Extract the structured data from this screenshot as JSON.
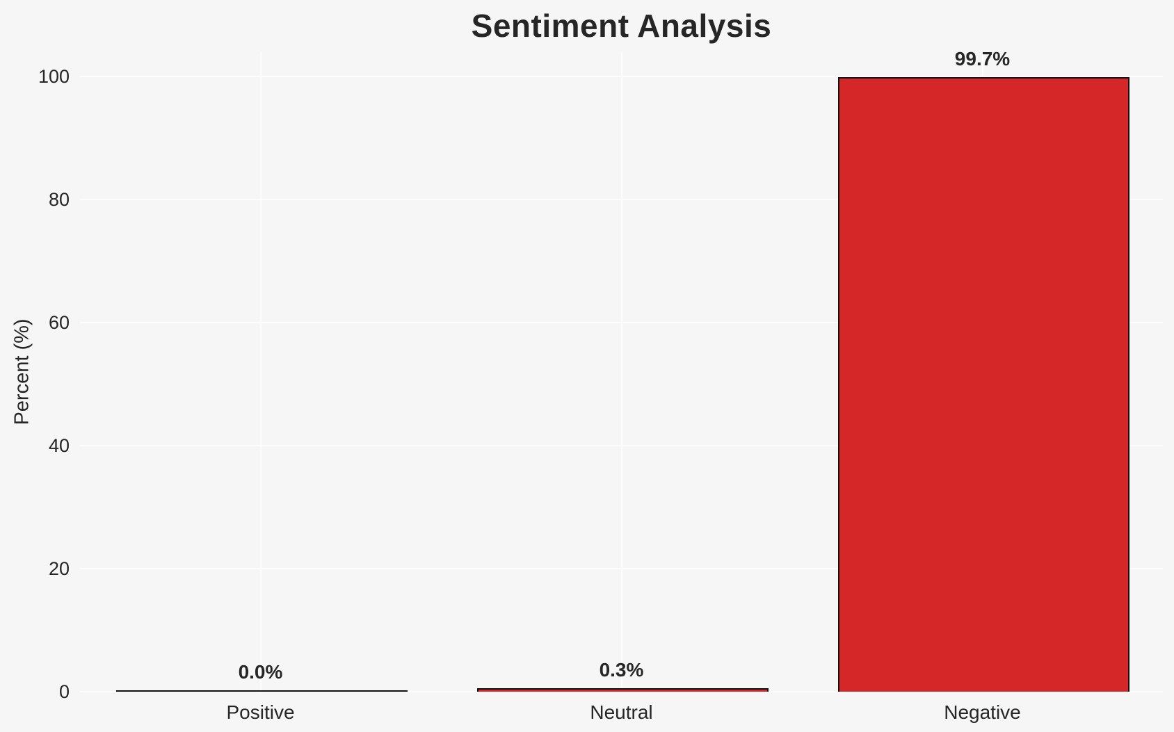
{
  "chart_data": {
    "type": "bar",
    "title": "Sentiment Analysis",
    "xlabel": "",
    "ylabel": "Percent (%)",
    "categories": [
      "Positive",
      "Neutral",
      "Negative"
    ],
    "values": [
      0.0,
      0.3,
      99.7
    ],
    "value_labels": [
      "0.0%",
      "0.3%",
      "99.7%"
    ],
    "yticks": [
      0,
      20,
      40,
      60,
      80,
      100
    ],
    "ylim": [
      0,
      104
    ],
    "bar_width_fraction": 0.8,
    "bar_color": "#d62728",
    "bar_edge_color": "#111111",
    "background_color": "#f6f6f7",
    "gridline_color": "#fdfdfe",
    "text_color": "#262626",
    "grid": "both",
    "legend": "none"
  }
}
